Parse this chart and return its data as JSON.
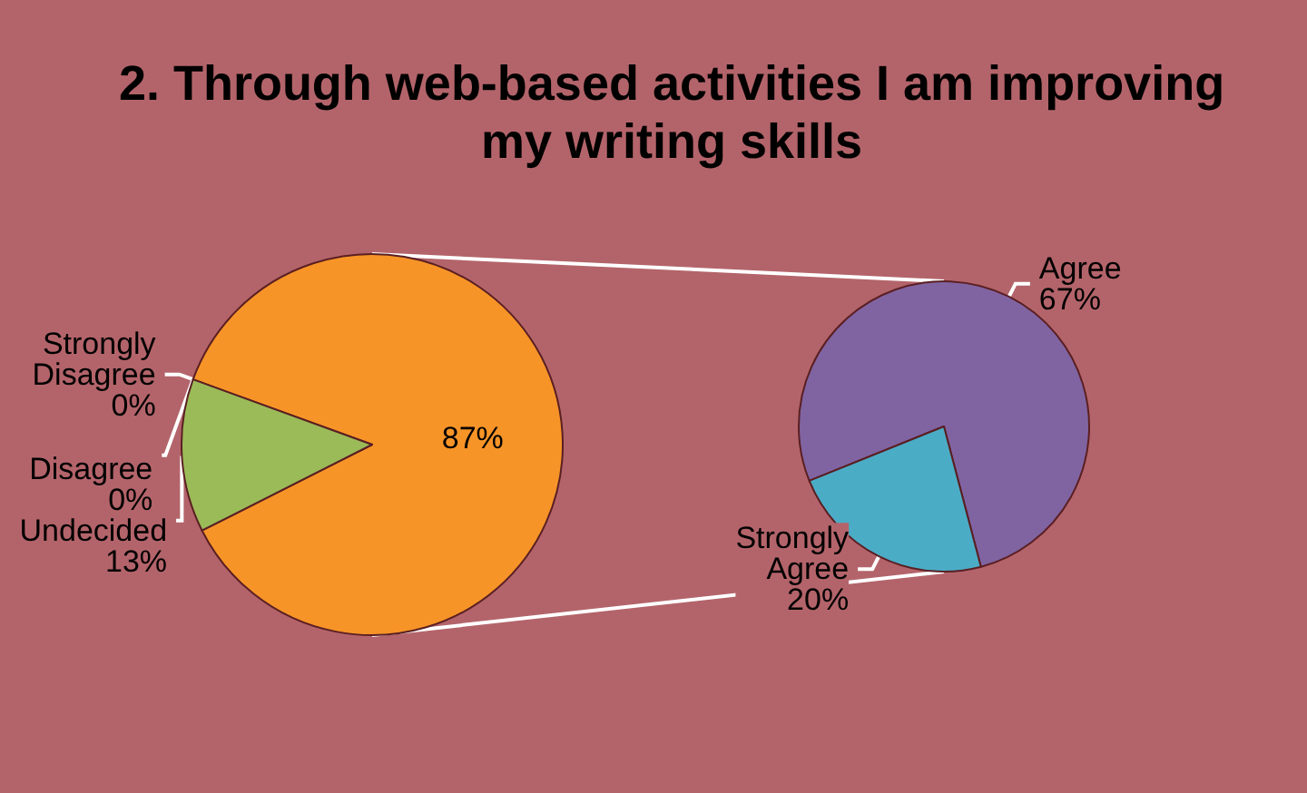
{
  "chart_data": [
    {
      "type": "pie",
      "title": "2. Through web-based activities I am improving my writing skills",
      "categories": [
        null,
        "Undecided",
        "Disagree",
        "Strongly Disagree"
      ],
      "values": [
        87,
        13,
        0,
        0
      ],
      "colors": [
        "#f79428",
        "#9bbb59",
        "#c0504d",
        "#4f81bd"
      ],
      "value_labels": [
        "87%",
        "13%",
        "0%",
        "0%"
      ]
    },
    {
      "type": "pie",
      "categories": [
        "Agree",
        "Strongly Agree"
      ],
      "values": [
        67,
        20
      ],
      "colors": [
        "#8064a2",
        "#4bacc6"
      ],
      "value_labels": [
        "67%",
        "20%"
      ]
    }
  ]
}
